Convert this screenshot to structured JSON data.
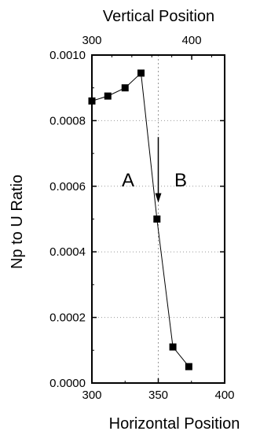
{
  "chart_data": {
    "type": "scatter",
    "title": "",
    "xlabel": "Horizontal Position",
    "top_xlabel": "Vertical Position",
    "ylabel": "Np to U Ratio",
    "xlim": [
      300,
      400
    ],
    "top_xlim": [
      300,
      433
    ],
    "ylim": [
      0.0,
      0.001
    ],
    "x_ticks": [
      "300",
      "350",
      "400"
    ],
    "top_x_ticks": [
      "300",
      "400"
    ],
    "y_ticks": [
      "0.0000",
      "0.0002",
      "0.0004",
      "0.0006",
      "0.0008",
      "0.0010"
    ],
    "grid": true,
    "series": [
      {
        "x": [
          300,
          312,
          325,
          337,
          349,
          361,
          373
        ],
        "y": [
          0.00086,
          0.000875,
          0.0009,
          0.000945,
          0.0005,
          0.00011,
          5e-05
        ]
      }
    ],
    "annotations": {
      "region_a": "A",
      "region_b": "B",
      "arrow_x": 350,
      "arrow_from_y": 0.00075,
      "arrow_to_y": 0.00055,
      "guide_x": 350
    },
    "line_color": "#000000",
    "grid_color": "#999999"
  }
}
